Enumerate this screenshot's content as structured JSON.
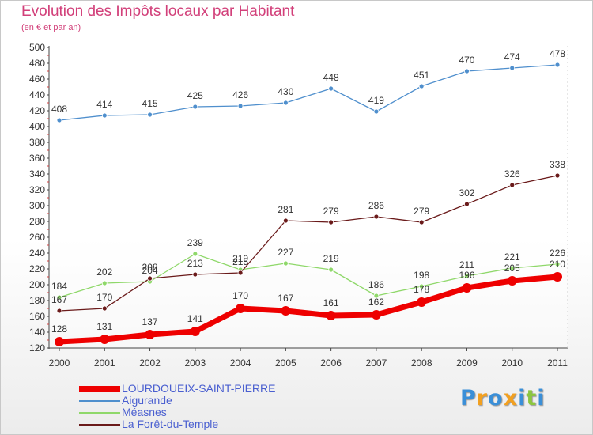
{
  "chart_data": {
    "type": "line",
    "title": "Evolution des Impôts locaux par Habitant",
    "subtitle": "(en € et par an)",
    "x": [
      "2000",
      "2001",
      "2002",
      "2003",
      "2004",
      "2005",
      "2006",
      "2007",
      "2008",
      "2009",
      "2010",
      "2011"
    ],
    "ylim": [
      120,
      500
    ],
    "yticks": [
      120,
      140,
      160,
      180,
      200,
      220,
      240,
      260,
      280,
      300,
      320,
      340,
      360,
      380,
      400,
      420,
      440,
      460,
      480,
      500
    ],
    "grid": false,
    "legend_position": "bottom-left",
    "series": [
      {
        "name": "LOURDOUEIX-SAINT-PIERRE",
        "color": "#ee0000",
        "values": [
          128,
          131,
          137,
          141,
          170,
          167,
          161,
          162,
          178,
          196,
          205,
          210
        ]
      },
      {
        "name": "Aigurande",
        "color": "#4f8fcd",
        "values": [
          408,
          414,
          415,
          425,
          426,
          430,
          448,
          419,
          451,
          470,
          474,
          478
        ]
      },
      {
        "name": "Méasnes",
        "color": "#8fd86a",
        "values": [
          184,
          202,
          204,
          239,
          219,
          227,
          219,
          186,
          198,
          211,
          221,
          226
        ]
      },
      {
        "name": "La Forêt-du-Temple",
        "color": "#6a1a1a",
        "values": [
          167,
          170,
          208,
          213,
          215,
          281,
          279,
          286,
          279,
          302,
          326,
          338
        ]
      }
    ]
  },
  "logo": {
    "letters": [
      "P",
      "r",
      "o",
      "x",
      "i",
      "t",
      "i"
    ],
    "colors": [
      "#3a8fd8",
      "#f2a020",
      "#3a8fd8",
      "#f2a020",
      "#3a8fd8",
      "#8cc63f",
      "#3a8fd8"
    ]
  }
}
